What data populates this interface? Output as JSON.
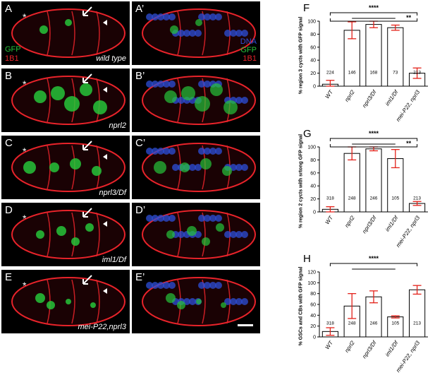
{
  "micrograph": {
    "labels_left": [
      "A",
      "B",
      "C",
      "D",
      "E"
    ],
    "labels_right": [
      "A’",
      "B’",
      "C’",
      "D’",
      "E’"
    ],
    "genotypes": [
      "wild type",
      "nprl2",
      "nprl3/Df",
      "iml1/Df",
      "mei-P22,nprl3"
    ],
    "channels_left": [
      "GFP",
      "1B1"
    ],
    "channels_right": [
      "DNA",
      "GFP",
      "1B1"
    ],
    "asterisk": "*",
    "colors": {
      "gfp": "#27c43a",
      "membrane": "#e8232a",
      "dna": "#2e4fd8"
    }
  },
  "chart_data": [
    {
      "letter": "F",
      "type": "bar",
      "categories": [
        "WT",
        "nprl2",
        "nprl3/Df",
        "iml1/Df",
        "mei-P22, nprl3"
      ],
      "values": [
        3,
        86,
        95,
        90,
        20
      ],
      "errors": [
        6,
        13,
        5,
        4,
        8
      ],
      "n_labels": [
        "224",
        "146",
        "168",
        "73",
        "213"
      ],
      "ylabel": "% region 3 cycts with GFP signal",
      "ylim": [
        0,
        100
      ],
      "yticks": [
        0,
        20,
        40,
        60,
        80,
        100
      ],
      "significance": [
        {
          "text": "****"
        },
        {
          "text": "**"
        }
      ]
    },
    {
      "letter": "G",
      "type": "bar",
      "categories": [
        "WT",
        "nprl2",
        "nprl3/Df",
        "iml1/Df",
        "mei-P22, nprl3"
      ],
      "values": [
        4,
        90,
        97,
        82,
        13
      ],
      "errors": [
        4,
        10,
        3,
        14,
        3
      ],
      "n_labels": [
        "318",
        "248",
        "246",
        "105",
        "213"
      ],
      "ylabel": "% region 2 cycts with srtong GFP signal",
      "ylim": [
        0,
        100
      ],
      "yticks": [
        0,
        20,
        40,
        60,
        80,
        100
      ],
      "significance": [
        {
          "text": "****"
        },
        {
          "text": "**"
        }
      ]
    },
    {
      "letter": "H",
      "type": "bar",
      "categories": [
        "WT",
        "nprl2",
        "nprl3/Df",
        "iml1/Df",
        "mei-P22, nprl3"
      ],
      "values": [
        10,
        57,
        74,
        37,
        87
      ],
      "errors": [
        7,
        23,
        11,
        2,
        8
      ],
      "n_labels": [
        "318",
        "248",
        "246",
        "105",
        "213"
      ],
      "ylabel": "% GSCs and CBs with GFP signal",
      "ylim": [
        0,
        120
      ],
      "yticks": [
        0,
        20,
        40,
        60,
        80,
        100,
        120
      ],
      "significance": [
        {
          "text": "****"
        }
      ]
    }
  ]
}
